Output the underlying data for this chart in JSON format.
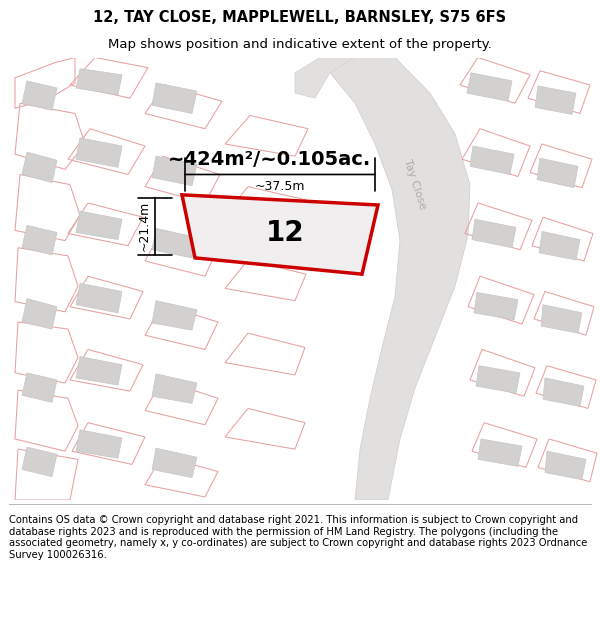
{
  "title": "12, TAY CLOSE, MAPPLEWELL, BARNSLEY, S75 6FS",
  "subtitle": "Map shows position and indicative extent of the property.",
  "footer": "Contains OS data © Crown copyright and database right 2021. This information is subject to Crown copyright and database rights 2023 and is reproduced with the permission of HM Land Registry. The polygons (including the associated geometry, namely x, y co-ordinates) are subject to Crown copyright and database rights 2023 Ordnance Survey 100026316.",
  "area_label": "~424m²/~0.105ac.",
  "number_label": "12",
  "dim_height": "~21.4m",
  "dim_width": "~37.5m",
  "map_bg": "#f2f0f0",
  "road_fill": "#e2dfdf",
  "building_fill": "#d3d0d0",
  "building_edge": "#c8c5c5",
  "pink_line": "#e8a0a0",
  "red_polygon_ec": "#cc0000",
  "red_polygon_fc": "#f5f2f2",
  "road_label": "Tay Close",
  "title_fontsize": 10.5,
  "subtitle_fontsize": 9.5,
  "footer_fontsize": 7.2,
  "number_fontsize": 20,
  "area_fontsize": 14,
  "dim_fontsize": 9
}
